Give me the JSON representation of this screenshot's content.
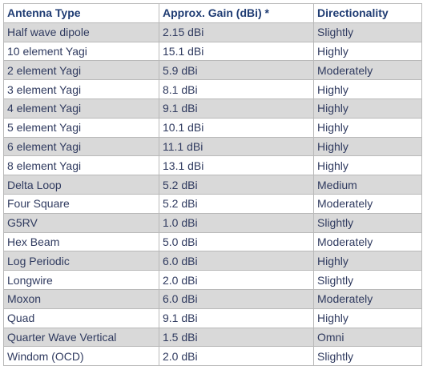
{
  "table": {
    "headers": [
      "Antenna Type",
      "Approx. Gain (dBi) *",
      "Directionality"
    ],
    "rows": [
      [
        "Half wave dipole",
        "2.15 dBi",
        "Slightly"
      ],
      [
        "10 element Yagi",
        "15.1 dBi",
        "Highly"
      ],
      [
        "2 element Yagi",
        "5.9 dBi",
        "Moderately"
      ],
      [
        "3 element Yagi",
        "8.1 dBi",
        "Highly"
      ],
      [
        "4 element Yagi",
        "9.1 dBi",
        "Highly"
      ],
      [
        "5 element Yagi",
        "10.1 dBi",
        "Highly"
      ],
      [
        "6 element Yagi",
        "11.1 dBi",
        "Highly"
      ],
      [
        "8 element Yagi",
        "13.1 dBi",
        "Highly"
      ],
      [
        "Delta Loop",
        "5.2 dBi",
        "Medium"
      ],
      [
        "Four Square",
        "5.2 dBi",
        "Moderately"
      ],
      [
        "G5RV",
        "1.0 dBi",
        "Slightly"
      ],
      [
        "Hex Beam",
        "5.0 dBi",
        "Moderately"
      ],
      [
        "Log Periodic",
        "6.0 dBi",
        "Highly"
      ],
      [
        "Longwire",
        "2.0 dBi",
        "Slightly"
      ],
      [
        "Moxon",
        "6.0 dBi",
        "Moderately"
      ],
      [
        "Quad",
        "9.1 dBi",
        "Highly"
      ],
      [
        "Quarter Wave Vertical",
        "1.5 dBi",
        "Omni"
      ],
      [
        "Windom (OCD)",
        "2.0 dBi",
        "Slightly"
      ]
    ]
  },
  "colors": {
    "header_text": "#1f3c73",
    "cell_text": "#2f3a5f",
    "stripe": "#d9d9d9",
    "border": "#b9b9b9"
  }
}
